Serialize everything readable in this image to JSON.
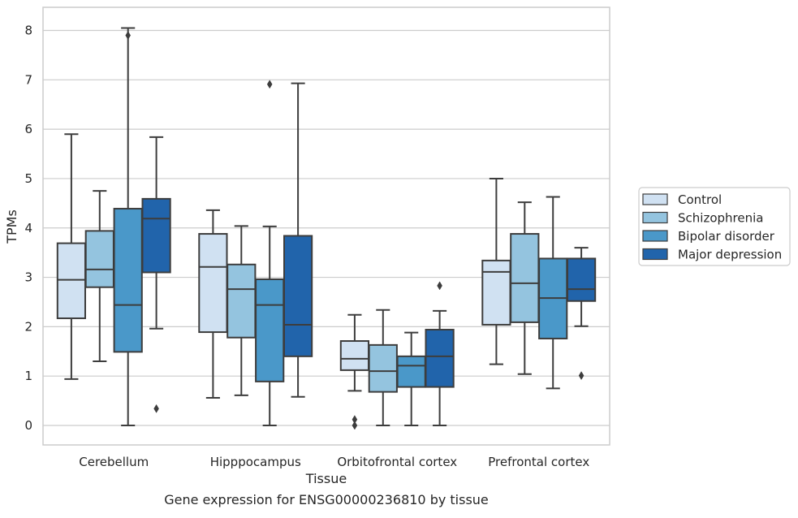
{
  "chart_data": {
    "type": "box",
    "title": "",
    "caption": "Gene expression for ENSG00000236810 by tissue",
    "xlabel": "Tissue",
    "ylabel": "TPMs",
    "ylim": [
      -0.4,
      8.45
    ],
    "yticks": [
      0,
      1,
      2,
      3,
      4,
      5,
      6,
      7,
      8
    ],
    "grid": true,
    "legend_position": "right",
    "categories": [
      "Cerebellum",
      "Hipppocampus",
      "Orbitofrontal cortex",
      "Prefrontal cortex"
    ],
    "series": [
      {
        "name": "Control",
        "color": "#d0e1f2",
        "boxes": [
          {
            "whislo": 0.94,
            "q1": 2.17,
            "med": 2.95,
            "q3": 3.69,
            "whishi": 5.9,
            "fliers": []
          },
          {
            "whislo": 0.56,
            "q1": 1.89,
            "med": 3.21,
            "q3": 3.88,
            "whishi": 4.36,
            "fliers": []
          },
          {
            "whislo": 0.7,
            "q1": 1.12,
            "med": 1.35,
            "q3": 1.71,
            "whishi": 2.24,
            "fliers": [
              0.12,
              0.0
            ]
          },
          {
            "whislo": 1.24,
            "q1": 2.04,
            "med": 3.11,
            "q3": 3.34,
            "whishi": 5.0,
            "fliers": []
          }
        ]
      },
      {
        "name": "Schizophrenia",
        "color": "#94c4df",
        "boxes": [
          {
            "whislo": 1.3,
            "q1": 2.8,
            "med": 3.16,
            "q3": 3.94,
            "whishi": 4.75,
            "fliers": []
          },
          {
            "whislo": 0.61,
            "q1": 1.78,
            "med": 2.76,
            "q3": 3.26,
            "whishi": 4.04,
            "fliers": []
          },
          {
            "whislo": 0.0,
            "q1": 0.68,
            "med": 1.1,
            "q3": 1.63,
            "whishi": 2.34,
            "fliers": []
          },
          {
            "whislo": 1.04,
            "q1": 2.09,
            "med": 2.88,
            "q3": 3.88,
            "whishi": 4.52,
            "fliers": []
          }
        ]
      },
      {
        "name": "Bipolar disorder",
        "color": "#4a98c9",
        "boxes": [
          {
            "whislo": 0.0,
            "q1": 1.49,
            "med": 2.44,
            "q3": 4.39,
            "whishi": 8.05,
            "fliers": [
              7.9
            ]
          },
          {
            "whislo": 0.0,
            "q1": 0.89,
            "med": 2.44,
            "q3": 2.96,
            "whishi": 4.03,
            "fliers": [
              6.91
            ]
          },
          {
            "whislo": 0.0,
            "q1": 0.78,
            "med": 1.21,
            "q3": 1.4,
            "whishi": 1.88,
            "fliers": []
          },
          {
            "whislo": 0.75,
            "q1": 1.76,
            "med": 2.58,
            "q3": 3.38,
            "whishi": 4.63,
            "fliers": []
          }
        ]
      },
      {
        "name": "Major depression",
        "color": "#2164ab",
        "boxes": [
          {
            "whislo": 1.96,
            "q1": 3.1,
            "med": 4.19,
            "q3": 4.59,
            "whishi": 5.84,
            "fliers": [
              0.34
            ]
          },
          {
            "whislo": 0.58,
            "q1": 1.4,
            "med": 2.04,
            "q3": 3.84,
            "whishi": 6.93,
            "fliers": []
          },
          {
            "whislo": 0.0,
            "q1": 0.78,
            "med": 1.4,
            "q3": 1.94,
            "whishi": 2.32,
            "fliers": [
              2.83
            ]
          },
          {
            "whislo": 2.01,
            "q1": 2.52,
            "med": 2.76,
            "q3": 3.38,
            "whishi": 3.6,
            "fliers": [
              1.01
            ]
          }
        ]
      }
    ]
  }
}
